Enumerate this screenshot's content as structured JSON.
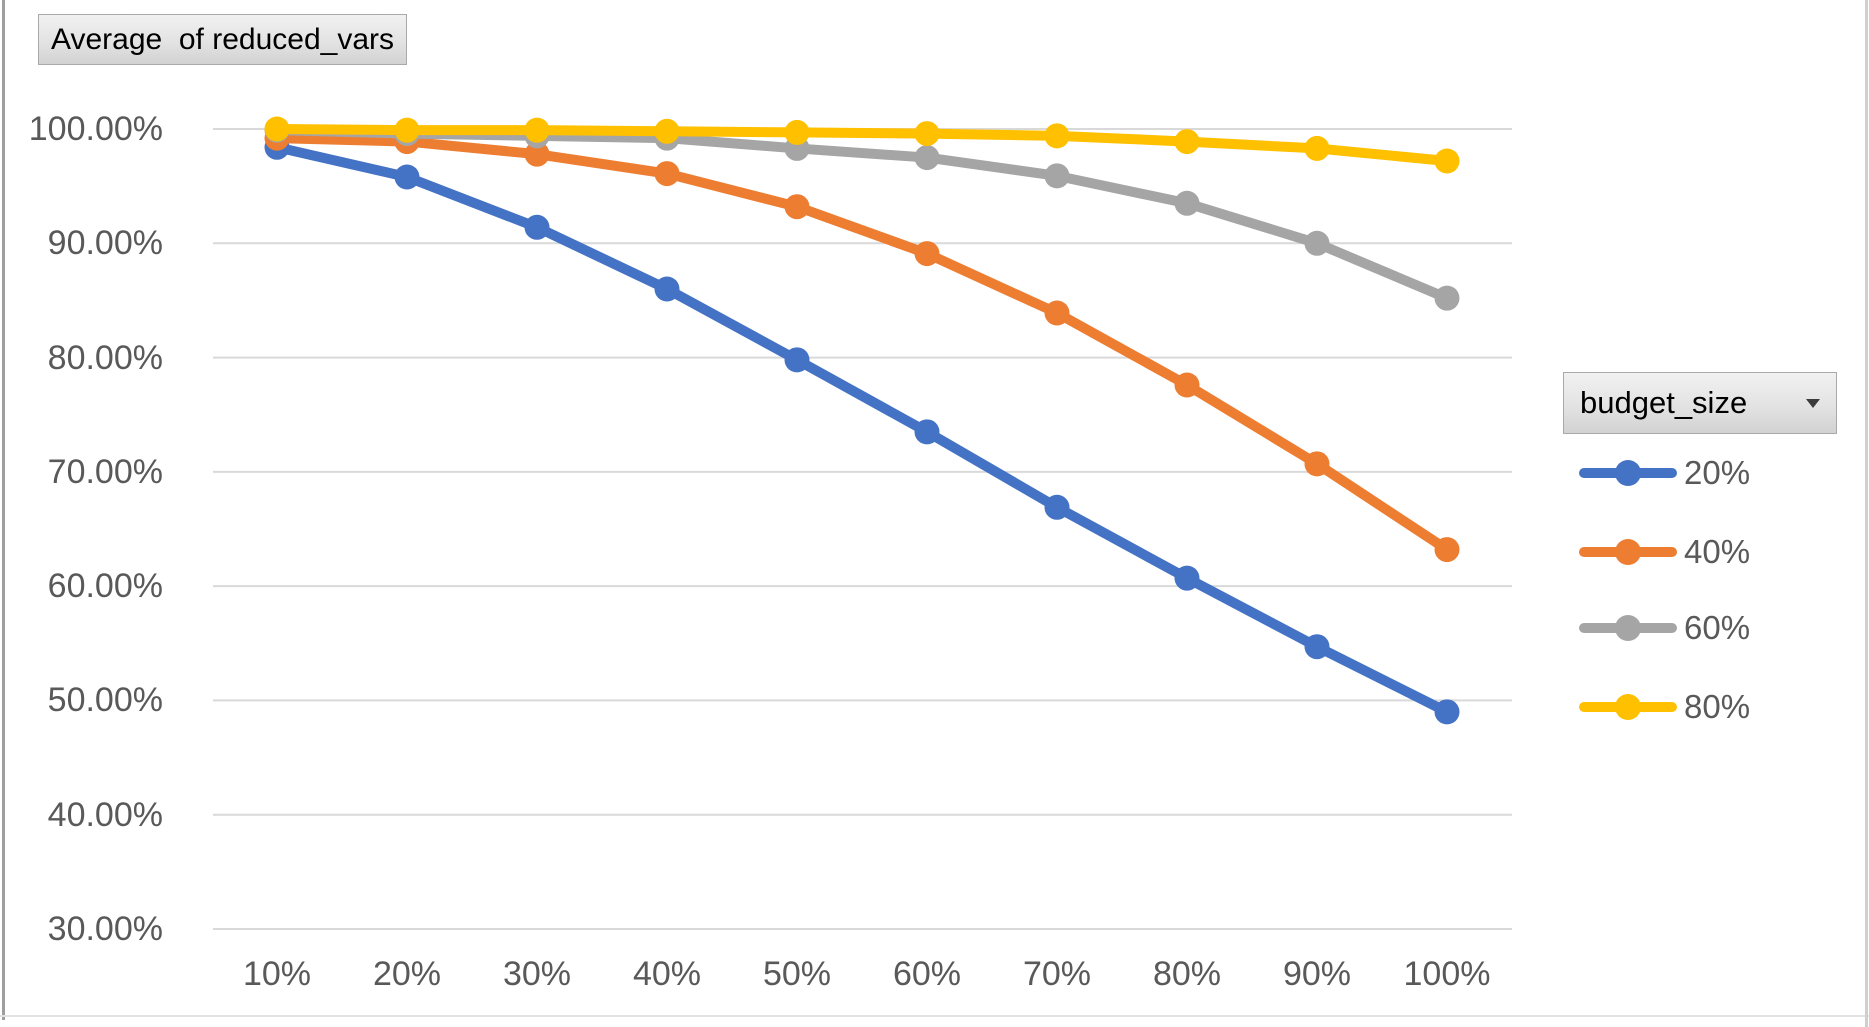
{
  "title": {
    "label": "Average  of reduced_vars"
  },
  "legend": {
    "field_label": "budget_size"
  },
  "chart_data": {
    "type": "line",
    "title": "Average  of reduced_vars",
    "categories": [
      "10%",
      "20%",
      "30%",
      "40%",
      "50%",
      "60%",
      "70%",
      "80%",
      "90%",
      "100%"
    ],
    "series": [
      {
        "name": "20%",
        "color": "#4472C4",
        "values": [
          98.4,
          95.8,
          91.4,
          86.0,
          79.8,
          73.5,
          66.9,
          60.7,
          54.7,
          49.0
        ]
      },
      {
        "name": "40%",
        "color": "#ED7D31",
        "values": [
          99.2,
          98.9,
          97.8,
          96.1,
          93.2,
          89.1,
          83.9,
          77.6,
          70.7,
          63.2
        ]
      },
      {
        "name": "60%",
        "color": "#A5A5A5",
        "values": [
          99.9,
          99.6,
          99.4,
          99.2,
          98.3,
          97.5,
          95.9,
          93.5,
          90.0,
          85.2
        ]
      },
      {
        "name": "80%",
        "color": "#FFC000",
        "values": [
          100.0,
          99.9,
          99.9,
          99.8,
          99.7,
          99.6,
          99.4,
          98.9,
          98.3,
          97.2
        ]
      }
    ],
    "y_axis": {
      "tick_labels": [
        "100.00%",
        "90.00%",
        "80.00%",
        "70.00%",
        "60.00%",
        "50.00%",
        "40.00%",
        "30.00%"
      ],
      "tick_values": [
        100,
        90,
        80,
        70,
        60,
        50,
        40,
        30
      ],
      "range": [
        30,
        100
      ],
      "grid": true,
      "grid_color": "#D9D9D9"
    },
    "x_axis": {
      "tick_labels": [
        "10%",
        "20%",
        "30%",
        "40%",
        "50%",
        "60%",
        "70%",
        "80%",
        "90%",
        "100%"
      ]
    },
    "legend_title": "budget_size",
    "legend_position": "right"
  }
}
